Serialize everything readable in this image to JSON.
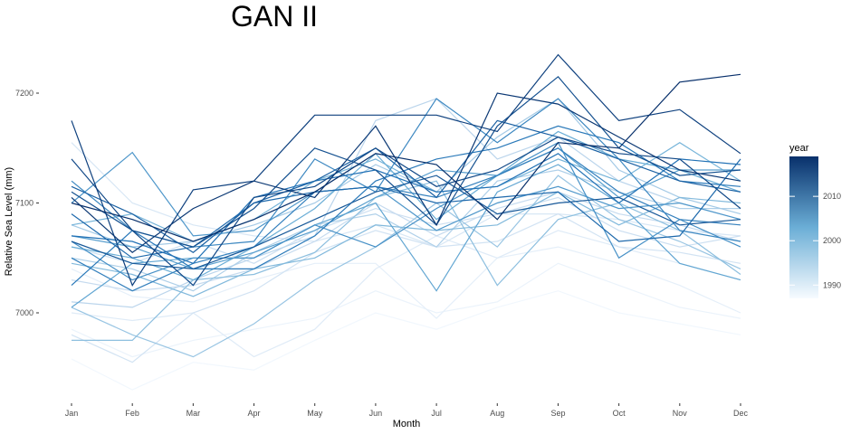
{
  "chart_data": {
    "type": "line",
    "title": "GAN II",
    "xlabel": "Month",
    "ylabel": "Relative Sea Level (mm)",
    "categories": [
      "Jan",
      "Feb",
      "Mar",
      "Apr",
      "May",
      "Jun",
      "Jul",
      "Aug",
      "Sep",
      "Oct",
      "Nov",
      "Dec"
    ],
    "ylim": [
      6920,
      7240
    ],
    "yticks": [
      7000,
      7100,
      7200
    ],
    "grid": false,
    "legend": {
      "title": "year",
      "position": "right",
      "type": "colorbar",
      "range": [
        1987,
        2019
      ],
      "ticks": [
        1990,
        2000,
        2010
      ],
      "color_low": "#f7fbff",
      "color_high": "#08306b"
    },
    "series": [
      {
        "year": 1988,
        "values": [
          6958,
          6930,
          6955,
          6948,
          6975,
          7000,
          6985,
          7005,
          7020,
          7000,
          6990,
          6980
        ]
      },
      {
        "year": 1989,
        "values": [
          6985,
          6960,
          6975,
          6985,
          6995,
          7020,
          7000,
          7010,
          7045,
          7025,
          7005,
          6995
        ]
      },
      {
        "year": 1990,
        "values": [
          7040,
          7015,
          7010,
          7030,
          7045,
          7045,
          6995,
          7050,
          7060,
          7045,
          7025,
          7000
        ]
      },
      {
        "year": 1991,
        "values": [
          7000,
          6993,
          7000,
          6960,
          6985,
          7040,
          7070,
          7050,
          7075,
          7060,
          7045,
          7030
        ]
      },
      {
        "year": 1992,
        "values": [
          7155,
          7100,
          7080,
          7070,
          7065,
          7080,
          7060,
          7090,
          7090,
          7085,
          7075,
          7070
        ]
      },
      {
        "year": 1993,
        "values": [
          6980,
          6955,
          7000,
          7020,
          7055,
          7075,
          7060,
          7065,
          7090,
          7060,
          7055,
          7045
        ]
      },
      {
        "year": 1994,
        "values": [
          7060,
          7045,
          7065,
          7045,
          7075,
          7095,
          7080,
          7090,
          7105,
          7075,
          7060,
          7070
        ]
      },
      {
        "year": 1995,
        "values": [
          7030,
          7020,
          7025,
          7040,
          7065,
          7100,
          7070,
          7095,
          7110,
          7090,
          7080,
          7065
        ]
      },
      {
        "year": 1996,
        "values": [
          7010,
          7005,
          7030,
          7050,
          7070,
          7175,
          7195,
          7140,
          7160,
          7120,
          7100,
          7085
        ]
      },
      {
        "year": 1997,
        "values": [
          7050,
          7040,
          7020,
          7055,
          7080,
          7090,
          7060,
          7120,
          7130,
          7110,
          7095,
          7095
        ]
      },
      {
        "year": 1998,
        "values": [
          7080,
          7060,
          7065,
          7080,
          7100,
          7135,
          7110,
          7160,
          7195,
          7130,
          7105,
          7090
        ]
      },
      {
        "year": 1999,
        "values": [
          7005,
          6980,
          6960,
          6990,
          7030,
          7060,
          7100,
          7060,
          7125,
          7085,
          7065,
          7040
        ]
      },
      {
        "year": 2000,
        "values": [
          6975,
          6975,
          7030,
          7035,
          7055,
          7105,
          7120,
          7025,
          7085,
          7100,
          7075,
          7035
        ]
      },
      {
        "year": 2001,
        "values": [
          7045,
          7035,
          7015,
          7040,
          7050,
          7080,
          7075,
          7080,
          7110,
          7080,
          7105,
          7100
        ]
      },
      {
        "year": 2002,
        "values": [
          7080,
          7090,
          7065,
          7085,
          7120,
          7140,
          7110,
          7115,
          7140,
          7120,
          7155,
          7120
        ]
      },
      {
        "year": 2003,
        "values": [
          7060,
          7050,
          7030,
          7060,
          7095,
          7145,
          7085,
          7125,
          7165,
          7140,
          7130,
          7110
        ]
      },
      {
        "year": 2004,
        "values": [
          7005,
          7045,
          7050,
          7050,
          7080,
          7100,
          7020,
          7110,
          7135,
          7100,
          7045,
          7030
        ]
      },
      {
        "year": 2005,
        "values": [
          7070,
          7060,
          7040,
          7055,
          7075,
          7105,
          7130,
          7125,
          7150,
          7105,
          7130,
          7130
        ]
      },
      {
        "year": 2006,
        "values": [
          7100,
          7146,
          7070,
          7075,
          7110,
          7115,
          7075,
          7100,
          7115,
          7095,
          7100,
          7085
        ]
      },
      {
        "year": 2007,
        "values": [
          7065,
          7030,
          7050,
          7050,
          7080,
          7060,
          7095,
          7125,
          7155,
          7050,
          7085,
          7060
        ]
      },
      {
        "year": 2008,
        "values": [
          7120,
          7075,
          7060,
          7065,
          7140,
          7110,
          7195,
          7155,
          7195,
          7140,
          7075,
          7065
        ]
      },
      {
        "year": 2009,
        "values": [
          7050,
          7020,
          7045,
          7060,
          7110,
          7115,
          7105,
          7125,
          7150,
          7110,
          7085,
          7080
        ]
      },
      {
        "year": 2010,
        "values": [
          7025,
          7075,
          7040,
          7040,
          7070,
          7120,
          7140,
          7150,
          7170,
          7155,
          7120,
          7115
        ]
      },
      {
        "year": 2011,
        "values": [
          7070,
          7065,
          7045,
          7105,
          7120,
          7130,
          7110,
          7115,
          7145,
          7100,
          7140,
          7135
        ]
      },
      {
        "year": 2012,
        "values": [
          7090,
          7050,
          7060,
          7100,
          7110,
          7115,
          7100,
          7105,
          7110,
          7065,
          7070,
          7140
        ]
      },
      {
        "year": 2013,
        "values": [
          7115,
          7090,
          7055,
          7100,
          7120,
          7150,
          7105,
          7175,
          7160,
          7140,
          7120,
          7110
        ]
      },
      {
        "year": 2014,
        "values": [
          7065,
          7045,
          7040,
          7060,
          7085,
          7110,
          7125,
          7090,
          7100,
          7105,
          7080,
          7085
        ]
      },
      {
        "year": 2015,
        "values": [
          7110,
          7075,
          7060,
          7095,
          7150,
          7130,
          7080,
          7170,
          7215,
          7150,
          7125,
          7130
        ]
      },
      {
        "year": 2016,
        "values": [
          7140,
          7075,
          7025,
          7105,
          7115,
          7150,
          7115,
          7130,
          7160,
          7145,
          7140,
          7095
        ]
      },
      {
        "year": 2017,
        "values": [
          7175,
          7025,
          7112,
          7120,
          7180,
          7180,
          7180,
          7165,
          7235,
          7175,
          7185,
          7145
        ]
      },
      {
        "year": 2018,
        "values": [
          7105,
          7055,
          7095,
          7120,
          7105,
          7170,
          7080,
          7200,
          7190,
          7160,
          7130,
          7120
        ]
      },
      {
        "year": 2019,
        "values": [
          7100,
          7085,
          7065,
          7085,
          7110,
          7145,
          7135,
          7085,
          7155,
          7150,
          7210,
          7217
        ]
      }
    ]
  }
}
